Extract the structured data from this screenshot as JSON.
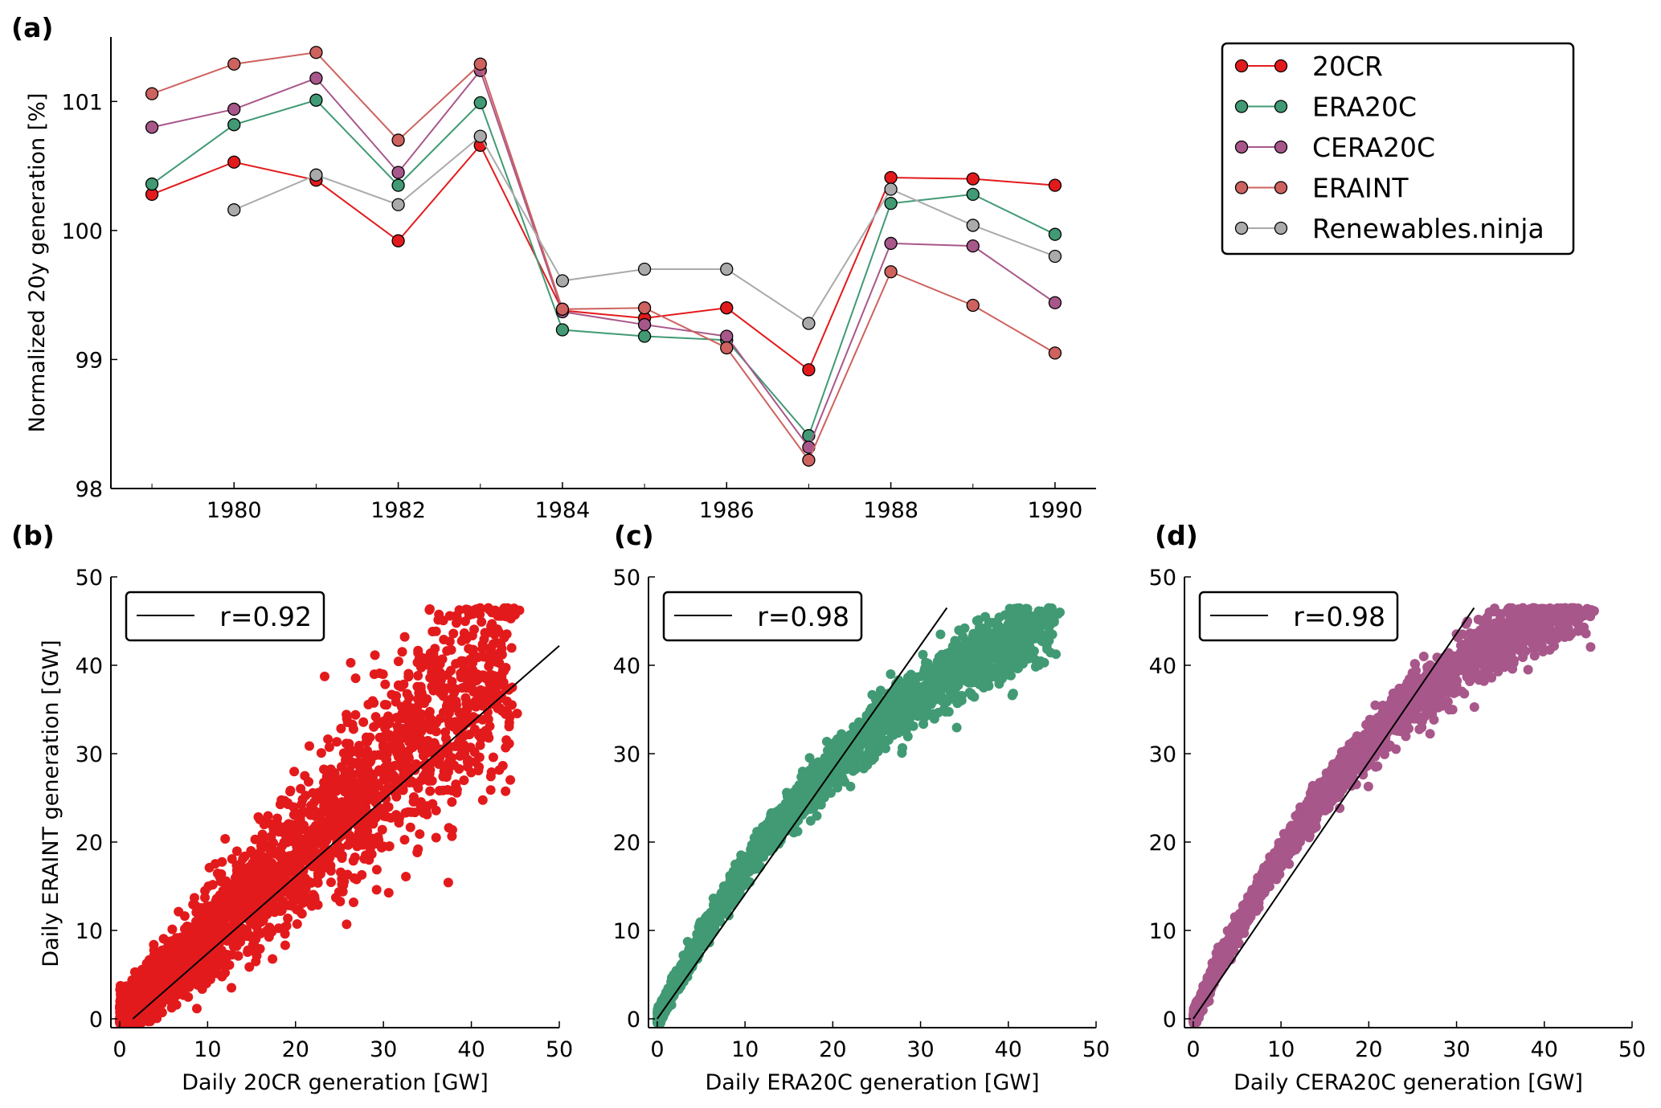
{
  "chart_data": [
    {
      "panel_label": "(a)",
      "type": "line",
      "ylabel": "Normalized 20y generation [%]",
      "xlabel": "",
      "x": [
        1979,
        1980,
        1981,
        1982,
        1983,
        1984,
        1985,
        1986,
        1987,
        1988,
        1989,
        1990
      ],
      "xticks": [
        1980,
        1982,
        1984,
        1986,
        1988,
        1990
      ],
      "yticks": [
        98,
        99,
        100,
        101
      ],
      "xlim": [
        1978.5,
        1990.5
      ],
      "ylim": [
        98,
        101.5
      ],
      "grid": false,
      "legend_placement": "outside-right-top",
      "series": [
        {
          "name": "20CR",
          "color": "#e31a1c",
          "values": [
            100.28,
            100.53,
            100.39,
            99.92,
            100.66,
            99.38,
            99.32,
            99.4,
            98.92,
            100.41,
            100.4,
            100.35
          ]
        },
        {
          "name": "ERA20C",
          "color": "#419a74",
          "values": [
            100.36,
            100.82,
            101.01,
            100.35,
            100.99,
            99.23,
            99.18,
            99.15,
            98.41,
            100.21,
            100.28,
            99.97
          ]
        },
        {
          "name": "CERA20C",
          "color": "#a8578a",
          "values": [
            100.8,
            100.94,
            101.18,
            100.45,
            101.24,
            99.37,
            99.27,
            99.18,
            98.32,
            99.9,
            99.88,
            99.44
          ]
        },
        {
          "name": "ERAINT",
          "color": "#cd625e",
          "values": [
            101.06,
            101.29,
            101.38,
            100.7,
            101.29,
            99.39,
            99.4,
            99.09,
            98.22,
            99.68,
            99.42,
            99.05
          ]
        },
        {
          "name": "Renewables.ninja",
          "color": "#aaaaaa",
          "values": [
            null,
            100.16,
            100.43,
            100.2,
            100.73,
            99.61,
            99.7,
            99.7,
            99.28,
            100.32,
            100.04,
            99.8
          ]
        }
      ]
    },
    {
      "panel_label": "(b)",
      "type": "scatter",
      "xlabel": "Daily 20CR generation [GW]",
      "ylabel": "Daily ERAINT generation [GW]",
      "xlim": [
        -1,
        50
      ],
      "ylim": [
        -1,
        50
      ],
      "xticks": [
        0,
        10,
        20,
        30,
        40,
        50
      ],
      "yticks": [
        0,
        10,
        20,
        30,
        40,
        50
      ],
      "color": "#e31a1c",
      "legend": "r=0.92",
      "fit_line": [
        [
          1.5,
          0
        ],
        [
          50,
          42.2
        ]
      ]
    },
    {
      "panel_label": "(c)",
      "type": "scatter",
      "xlabel": "Daily ERA20C generation [GW]",
      "ylabel": "",
      "xlim": [
        -1,
        50
      ],
      "ylim": [
        -1,
        50
      ],
      "xticks": [
        0,
        10,
        20,
        30,
        40,
        50
      ],
      "yticks": [
        0,
        10,
        20,
        30,
        40,
        50
      ],
      "color": "#419a74",
      "legend": "r=0.98",
      "fit_line": [
        [
          0,
          0
        ],
        [
          33,
          46.5
        ]
      ]
    },
    {
      "panel_label": "(d)",
      "type": "scatter",
      "xlabel": "Daily CERA20C generation [GW]",
      "ylabel": "",
      "xlim": [
        -1,
        50
      ],
      "ylim": [
        -1,
        50
      ],
      "xticks": [
        0,
        10,
        20,
        30,
        40,
        50
      ],
      "yticks": [
        0,
        10,
        20,
        30,
        40,
        50
      ],
      "color": "#a8578a",
      "legend": "r=0.98",
      "fit_line": [
        [
          0,
          0
        ],
        [
          32,
          46.5
        ]
      ]
    }
  ]
}
